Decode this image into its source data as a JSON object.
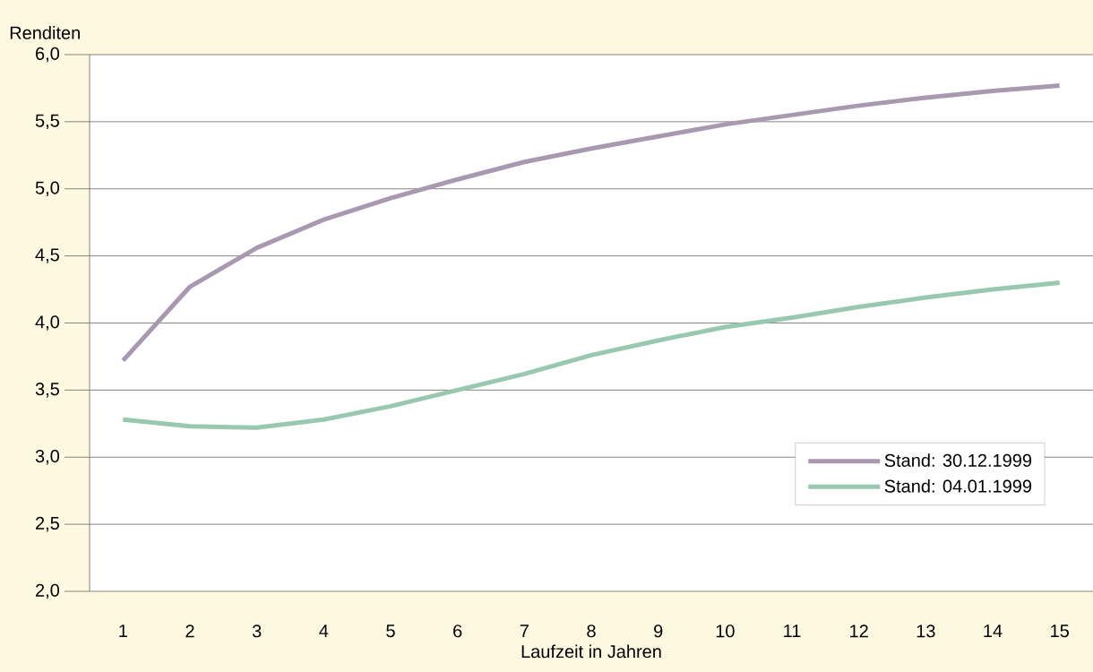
{
  "chart_data": {
    "type": "line",
    "ylabel": "Renditen",
    "xlabel": "Laufzeit in Jahren",
    "categories": [
      "1",
      "2",
      "3",
      "4",
      "5",
      "6",
      "7",
      "8",
      "9",
      "10",
      "11",
      "12",
      "13",
      "14",
      "15"
    ],
    "series": [
      {
        "name": "Stand: 30.12.1999",
        "color": "#a898b0",
        "values": [
          3.72,
          4.27,
          4.56,
          4.77,
          4.93,
          5.07,
          5.2,
          5.3,
          5.39,
          5.48,
          5.55,
          5.62,
          5.68,
          5.73,
          5.77
        ]
      },
      {
        "name": "Stand: 04.01.1999",
        "color": "#98c8b0",
        "values": [
          3.28,
          3.23,
          3.22,
          3.28,
          3.38,
          3.5,
          3.62,
          3.76,
          3.87,
          3.97,
          4.04,
          4.12,
          4.19,
          4.25,
          4.3
        ]
      }
    ],
    "ylim": [
      2,
      6
    ],
    "yticks": [
      {
        "value": 2,
        "label": "2,0"
      },
      {
        "value": 2.5,
        "label": "2,5"
      },
      {
        "value": 3,
        "label": "3,0"
      },
      {
        "value": 3.5,
        "label": "3,5"
      },
      {
        "value": 4,
        "label": "4,0"
      },
      {
        "value": 4.5,
        "label": "4,5"
      },
      {
        "value": 5,
        "label": "5,0"
      },
      {
        "value": 5.5,
        "label": "5,5"
      },
      {
        "value": 6,
        "label": "6,0"
      }
    ],
    "grid": "y",
    "legend": "bottom right",
    "line_style": "solid",
    "marker": "none"
  }
}
